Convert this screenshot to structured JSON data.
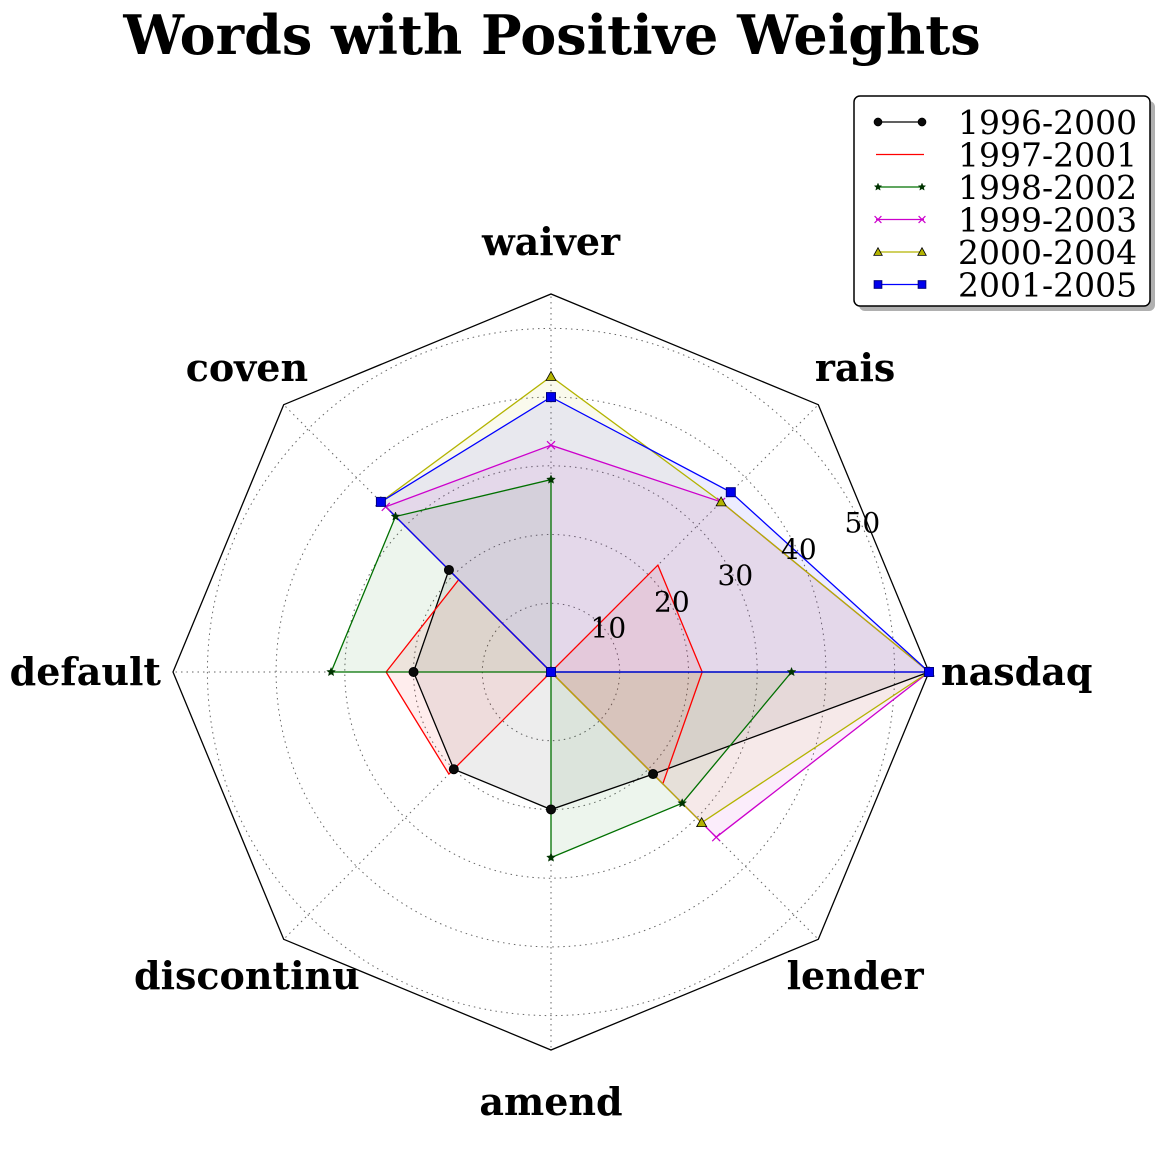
{
  "chart_data": {
    "type": "radar",
    "title": "Words with Positive Weights",
    "categories": [
      "nasdaq",
      "rais",
      "waiver",
      "coven",
      "default",
      "discontinu",
      "amend",
      "lender"
    ],
    "rlim": [
      0,
      55
    ],
    "rticks": [
      10,
      20,
      30,
      40,
      50
    ],
    "rtick_labels": [
      "10",
      "20",
      "30",
      "40",
      "50"
    ],
    "grid": true,
    "legend_position": "top-right",
    "series": [
      {
        "name": "1996-2000",
        "color": "#000000",
        "marker": "circle",
        "values": [
          55,
          0,
          0,
          21,
          20,
          20,
          20,
          21
        ]
      },
      {
        "name": "1997-2001",
        "color": "#ff0000",
        "marker": "none",
        "values": [
          22,
          22,
          0,
          19,
          24,
          21,
          0,
          23
        ]
      },
      {
        "name": "1998-2002",
        "color": "#007000",
        "marker": "star",
        "values": [
          35,
          0,
          28,
          32,
          32,
          0,
          27,
          27
        ]
      },
      {
        "name": "1999-2003",
        "color": "#cc00cc",
        "marker": "x",
        "values": [
          55,
          35,
          33,
          34,
          0,
          0,
          0,
          34
        ]
      },
      {
        "name": "2000-2004",
        "color": "#b3b300",
        "marker": "triangle",
        "values": [
          55,
          35,
          43,
          35,
          0,
          0,
          0,
          31
        ]
      },
      {
        "name": "2001-2005",
        "color": "#0000ff",
        "marker": "square",
        "values": [
          55,
          37,
          40,
          35,
          0,
          0,
          0,
          0
        ]
      }
    ]
  }
}
